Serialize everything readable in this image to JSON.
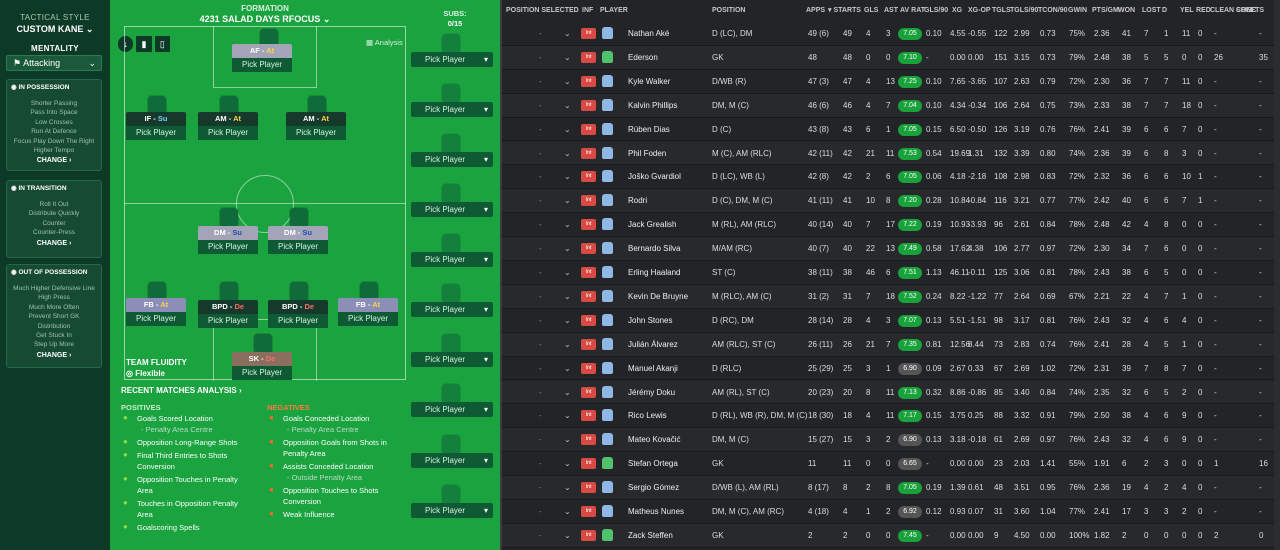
{
  "tactics": {
    "style_label": "TACTICAL STYLE",
    "style_name": "CUSTOM KANE",
    "mentality_label": "MENTALITY",
    "mentality": "Attacking",
    "in_possession": {
      "title": "IN POSSESSION",
      "lines": [
        "Shorter Passing",
        "Pass Into Space",
        "Low Crosses",
        "Run At Defence",
        "Focus Play Down The Right",
        "Higher Tempo"
      ],
      "change": "CHANGE"
    },
    "in_transition": {
      "title": "IN TRANSITION",
      "lines": [
        "Roll It Out",
        "Distribute Quickly",
        "Counter",
        "Counter-Press"
      ],
      "change": "CHANGE"
    },
    "out_of_possession": {
      "title": "OUT OF POSSESSION",
      "lines": [
        "Much Higher Defensive Line",
        "High Press",
        "Much More Often",
        "Prevent Short GK",
        "Distribution",
        "Get Stuck In",
        "Step Up More"
      ],
      "change": "CHANGE"
    }
  },
  "formation": {
    "label": "FORMATION",
    "name": "4231 SALAD DAYS RFOCUS",
    "subs_label": "SUBS:",
    "subs_count": "0/15",
    "analysis": "Analysis",
    "pick": "Pick Player",
    "positions": [
      {
        "role": "AF",
        "duty": "At"
      },
      {
        "role": "IF",
        "duty": "Su"
      },
      {
        "role": "AM",
        "duty": "At"
      },
      {
        "role": "AM",
        "duty": "At"
      },
      {
        "role": "DM",
        "duty": "Su"
      },
      {
        "role": "DM",
        "duty": "Su"
      },
      {
        "role": "FB",
        "duty": "At"
      },
      {
        "role": "BPD",
        "duty": "De"
      },
      {
        "role": "BPD",
        "duty": "De"
      },
      {
        "role": "FB",
        "duty": "At"
      },
      {
        "role": "SK",
        "duty": "De"
      }
    ],
    "fluidity_label": "TEAM FLUIDITY",
    "fluidity": "Flexible"
  },
  "analysis": {
    "title": "RECENT MATCHES ANALYSIS",
    "positives_label": "POSITIVES",
    "negatives_label": "NEGATIVES",
    "positives": [
      [
        "Goals Scored Location",
        "- Penalty Area Centre"
      ],
      [
        "Opposition Long-Range Shots"
      ],
      [
        "Final Third Entries to Shots",
        "Conversion"
      ],
      [
        "Opposition Touches in Penalty",
        "Area"
      ],
      [
        "Touches in Opposition Penalty",
        "Area"
      ],
      [
        "Goalscoring Spells"
      ]
    ],
    "negatives": [
      [
        "Goals Conceded Location",
        "- Penalty Area Centre"
      ],
      [
        "Opposition Goals from Shots in",
        "Penalty Area"
      ],
      [
        "Assists Conceded Location",
        "- Outside Penalty Area"
      ],
      [
        "Opposition Touches to Shots",
        "Conversion"
      ],
      [
        "Weak Influence"
      ]
    ]
  },
  "table": {
    "headers": [
      "POSITION SELECTED",
      "INF",
      "PLAYER",
      "POSITION",
      "APPS",
      "▾ STARTS",
      "GLS",
      "AST",
      "AV RAT",
      "GLS/90",
      "XG",
      "XG-OP",
      "TGLS",
      "TGLS/90",
      "TCON/90",
      "GWIN",
      "PTS/GM",
      "WON",
      "LOST",
      "D",
      "YEL",
      "RED",
      "CLEAN SHEETS",
      "CONC"
    ],
    "rows": [
      [
        "Nathan Aké",
        "D (LC), DM",
        "49 (6)",
        "49",
        "4",
        "3",
        "7.05",
        "0.10",
        "4.55",
        "-0.55",
        "122",
        "2.99",
        "0.73",
        "75%",
        "2.36",
        "41",
        "7",
        "1",
        "11",
        "0",
        "-",
        "-"
      ],
      [
        "Ederson",
        "GK",
        "48",
        "48",
        "0",
        "0",
        "7.10",
        "-",
        "0.00",
        "0.00",
        "151",
        "3.15",
        "0.73",
        "79%",
        "2.48",
        "38",
        "5",
        "5",
        "0",
        "0",
        "26",
        "35"
      ],
      [
        "Kyle Walker",
        "D/WB (R)",
        "47 (3)",
        "47",
        "4",
        "13",
        "7.25",
        "0.10",
        "7.65",
        "-3.65",
        "107",
        "2.63",
        "0.79",
        "72%",
        "2.30",
        "36",
        "7",
        "7",
        "11",
        "0",
        "-",
        "-"
      ],
      [
        "Kalvin Phillips",
        "DM, M (C)",
        "46 (6)",
        "46",
        "4",
        "7",
        "7.04",
        "0.10",
        "4.34",
        "-0.34",
        "106",
        "2.64",
        "0.75",
        "73%",
        "2.33",
        "38",
        "7",
        "7",
        "18",
        "0",
        "-",
        "-"
      ],
      [
        "Rúben Dias",
        "D (C)",
        "43 (8)",
        "43",
        "6",
        "1",
        "7.05",
        "0.15",
        "6.50",
        "-0.50",
        "126",
        "3.19",
        "0.76",
        "76%",
        "2.41",
        "39",
        "6",
        "6",
        "7",
        "0",
        "-",
        "-"
      ],
      [
        "Phil Foden",
        "M (C), AM (RLC)",
        "42 (11)",
        "42",
        "21",
        "11",
        "7.53",
        "0.54",
        "19.69",
        "1.31",
        "132",
        "3.39",
        "0.80",
        "74%",
        "2.36",
        "39",
        "6",
        "8",
        "3",
        "0",
        "-",
        "-"
      ],
      [
        "Joško Gvardiol",
        "D (LC), WB (L)",
        "42 (8)",
        "42",
        "2",
        "6",
        "7.05",
        "0.06",
        "4.18",
        "-2.18",
        "108",
        "2.98",
        "0.83",
        "72%",
        "2.32",
        "36",
        "6",
        "6",
        "10",
        "1",
        "-",
        "-"
      ],
      [
        "Rodri",
        "D (C), DM, M (C)",
        "41 (11)",
        "41",
        "10",
        "8",
        "7.20",
        "0.28",
        "10.84",
        "-0.84",
        "116",
        "3.21",
        "0.77",
        "77%",
        "2.42",
        "40",
        "6",
        "6",
        "7",
        "1",
        "-",
        "-"
      ],
      [
        "Jack Grealish",
        "M (RL), AM (RLC)",
        "40 (14)",
        "40",
        "7",
        "17",
        "7.22",
        "0.19",
        "10.93",
        "-3.93",
        "96",
        "2.61",
        "0.84",
        "78%",
        "2.48",
        "42",
        "4",
        "8",
        "0",
        "0",
        "-",
        "-"
      ],
      [
        "Bernardo Silva",
        "M/AM (RC)",
        "40 (7)",
        "40",
        "22",
        "13",
        "7.49",
        "0.58",
        "17.62",
        "4.38",
        "106",
        "2.77",
        "0.97",
        "72%",
        "2.30",
        "34",
        "7",
        "6",
        "0",
        "0",
        "-",
        "-"
      ],
      [
        "Erling Haaland",
        "ST (C)",
        "38 (11)",
        "38",
        "46",
        "6",
        "7.51",
        "1.13",
        "46.11",
        "-0.11",
        "125",
        "3.06",
        "0.81",
        "78%",
        "2.43",
        "38",
        "6",
        "5",
        "0",
        "0",
        "-",
        "-"
      ],
      [
        "Kevin De Bruyne",
        "M (RLC), AM (C)",
        "31 (2)",
        "31",
        "7",
        "18",
        "7.52",
        "0.24",
        "8.22",
        "-1.22",
        "77",
        "2.64",
        "0.69",
        "67%",
        "2.21",
        "22",
        "4",
        "7",
        "1",
        "0",
        "-",
        "-"
      ],
      [
        "John Stones",
        "D (RC), DM",
        "28 (14)",
        "28",
        "4",
        "3",
        "7.07",
        "0.13",
        "5.51",
        "-1.51",
        "98",
        "3.17",
        "0.81",
        "76%",
        "2.43",
        "32",
        "4",
        "6",
        "4",
        "0",
        "-",
        "-"
      ],
      [
        "Julián Álvarez",
        "AM (RLC), ST (C)",
        "26 (11)",
        "26",
        "21",
        "7",
        "7.35",
        "0.81",
        "12.56",
        "8.44",
        "73",
        "2.83",
        "0.74",
        "76%",
        "2.41",
        "28",
        "4",
        "5",
        "1",
        "0",
        "-",
        "-"
      ],
      [
        "Manuel Akanji",
        "D (RLC)",
        "25 (29)",
        "25",
        "3",
        "1",
        "6.90",
        "0.09",
        "2.67",
        "0.33",
        "67",
        "2.69",
        "1.02",
        "72%",
        "2.31",
        "39",
        "7",
        "8",
        "7",
        "0",
        "-",
        "-"
      ],
      [
        "Jérémy Doku",
        "AM (RL), ST (C)",
        "20 (23)",
        "20",
        "8",
        "11",
        "7.13",
        "0.32",
        "8.86",
        "-0.86",
        "85",
        "3.40",
        "0.84",
        "74%",
        "2.35",
        "32",
        "6",
        "5",
        "2",
        "0",
        "-",
        "-"
      ],
      [
        "Rico Lewis",
        "D (RL), WB (R), DM, M (C)",
        "18 (30)",
        "18",
        "4",
        "11",
        "7.17",
        "0.15",
        "3.75",
        "0.25",
        "88",
        "3.32",
        "0.91",
        "79%",
        "2.50",
        "38",
        "4",
        "6",
        "9",
        "0",
        "-",
        "-"
      ],
      [
        "Mateo Kovačić",
        "DM, M (C)",
        "15 (27)",
        "15",
        "3",
        "2",
        "6.90",
        "0.13",
        "3.18",
        "-0.18",
        "61",
        "2.69",
        "0.97",
        "76%",
        "2.43",
        "32",
        "4",
        "6",
        "9",
        "0",
        "-",
        "-"
      ],
      [
        "Stefan Ortega",
        "GK",
        "11",
        "11",
        "0",
        "0",
        "6.65",
        "-",
        "0.00",
        "0.00",
        "23",
        "2.03",
        "1.41",
        "55%",
        "1.91",
        "6",
        "2",
        "3",
        "0",
        "0",
        "1",
        "16"
      ],
      [
        "Sergio Gómez",
        "D/WB (L), AM (RL)",
        "8 (17)",
        "8",
        "2",
        "8",
        "7.05",
        "0.19",
        "1.39",
        "0.61",
        "48",
        "3.51",
        "0.95",
        "76%",
        "2.36",
        "19",
        "4",
        "2",
        "4",
        "0",
        "-",
        "-"
      ],
      [
        "Matheus Nunes",
        "DM, M (C), AM (RC)",
        "4 (18)",
        "4",
        "1",
        "2",
        "6.92",
        "0.12",
        "0.93",
        "0.07",
        "31",
        "3.60",
        "1.04",
        "77%",
        "2.41",
        "17",
        "3",
        "3",
        "2",
        "0",
        "-",
        "-"
      ],
      [
        "Zack Steffen",
        "GK",
        "2",
        "2",
        "0",
        "0",
        "7.45",
        "-",
        "0.00",
        "0.00",
        "9",
        "4.50",
        "0.00",
        "100%",
        "1.82",
        "2",
        "0",
        "0",
        "0",
        "0",
        "2",
        "0"
      ]
    ],
    "inf_label": "Int",
    "pos_dash": "-"
  }
}
